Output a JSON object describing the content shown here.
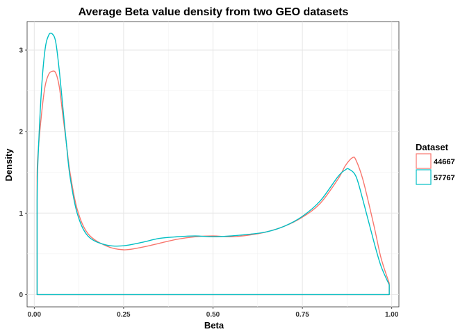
{
  "chart_data": {
    "type": "area",
    "title": "Average Beta value density from two GEO datasets",
    "xlabel": "Beta",
    "ylabel": "Density",
    "xlim": [
      -0.02,
      1.02
    ],
    "ylim": [
      -0.15,
      3.35
    ],
    "x_ticks": [
      "0.00",
      "0.25",
      "0.50",
      "0.75",
      "1.00"
    ],
    "x_tick_values": [
      0,
      0.25,
      0.5,
      0.75,
      1.0
    ],
    "y_ticks": [
      "0",
      "1",
      "2",
      "3"
    ],
    "y_tick_values": [
      0,
      1,
      2,
      3
    ],
    "grid": true,
    "legend": {
      "title": "Dataset",
      "position": "right"
    },
    "series": [
      {
        "name": "44667",
        "color": "#F8766D",
        "x": [
          0.008,
          0.01,
          0.02,
          0.03,
          0.04,
          0.05,
          0.06,
          0.07,
          0.08,
          0.09,
          0.1,
          0.12,
          0.15,
          0.2,
          0.25,
          0.3,
          0.35,
          0.4,
          0.45,
          0.5,
          0.55,
          0.6,
          0.65,
          0.7,
          0.75,
          0.8,
          0.85,
          0.87,
          0.89,
          0.9,
          0.92,
          0.95,
          0.97,
          0.993
        ],
        "y": [
          1.45,
          1.7,
          2.2,
          2.55,
          2.7,
          2.74,
          2.72,
          2.55,
          2.2,
          1.85,
          1.5,
          1.05,
          0.75,
          0.6,
          0.55,
          0.58,
          0.63,
          0.68,
          0.71,
          0.72,
          0.71,
          0.73,
          0.77,
          0.84,
          0.95,
          1.12,
          1.42,
          1.58,
          1.68,
          1.65,
          1.4,
          0.85,
          0.45,
          0.14
        ]
      },
      {
        "name": "57767",
        "color": "#00BFC4",
        "x": [
          0.008,
          0.01,
          0.02,
          0.03,
          0.04,
          0.05,
          0.06,
          0.07,
          0.08,
          0.09,
          0.1,
          0.12,
          0.15,
          0.2,
          0.25,
          0.3,
          0.35,
          0.4,
          0.45,
          0.5,
          0.55,
          0.6,
          0.65,
          0.7,
          0.75,
          0.8,
          0.85,
          0.87,
          0.88,
          0.9,
          0.92,
          0.95,
          0.97,
          0.993
        ],
        "y": [
          1.15,
          1.6,
          2.5,
          3.0,
          3.18,
          3.2,
          3.1,
          2.75,
          2.3,
          1.85,
          1.45,
          1.0,
          0.72,
          0.61,
          0.6,
          0.64,
          0.69,
          0.71,
          0.72,
          0.71,
          0.72,
          0.74,
          0.77,
          0.84,
          0.96,
          1.15,
          1.45,
          1.53,
          1.54,
          1.45,
          1.15,
          0.65,
          0.35,
          0.12
        ]
      }
    ]
  }
}
